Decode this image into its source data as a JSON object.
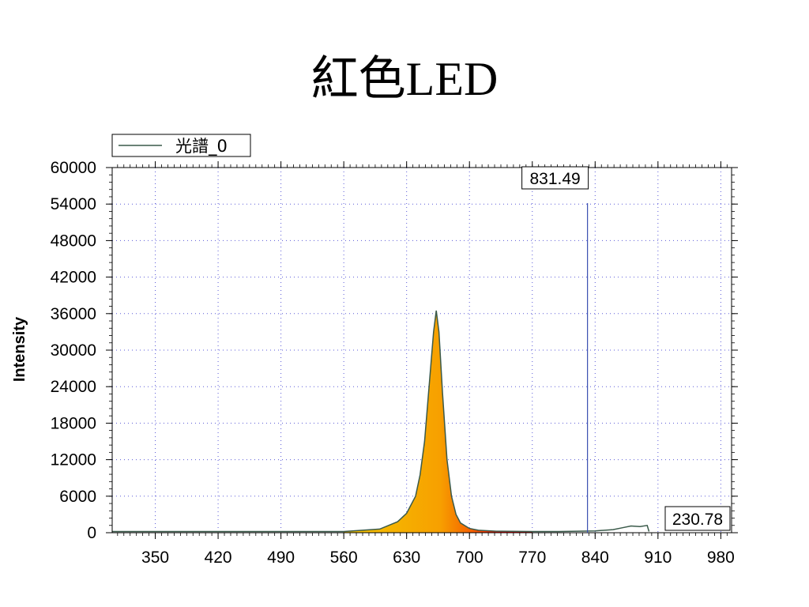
{
  "slide": {
    "title": "紅色LED"
  },
  "chart_data": {
    "type": "area",
    "title": "",
    "xlabel": "",
    "ylabel": "Intensity",
    "xlim": [
      302,
      992
    ],
    "ylim": [
      0,
      60000
    ],
    "x_ticks": [
      "350",
      "420",
      "490",
      "560",
      "630",
      "700",
      "770",
      "840",
      "910",
      "980"
    ],
    "y_ticks": [
      "0",
      "6000",
      "12000",
      "18000",
      "24000",
      "30000",
      "36000",
      "42000",
      "48000",
      "54000",
      "60000"
    ],
    "grid": true,
    "legend_position": "top-left",
    "series": [
      {
        "name": "光譜_0",
        "color": "#3a5a4a",
        "fill": "gradient-by-wavelength",
        "x": [
          302,
          560,
          600,
          620,
          630,
          640,
          645,
          650,
          655,
          660,
          663,
          666,
          670,
          675,
          680,
          685,
          690,
          700,
          710,
          730,
          770,
          800,
          840,
          860,
          870,
          880,
          890,
          898,
          900
        ],
        "y": [
          200,
          200,
          600,
          1800,
          3200,
          6000,
          9500,
          15000,
          24000,
          33000,
          36500,
          33000,
          23000,
          12000,
          6000,
          3000,
          1600,
          700,
          400,
          250,
          200,
          200,
          300,
          500,
          800,
          1100,
          1000,
          1200,
          200
        ]
      }
    ],
    "annotations": [
      {
        "type": "cursor",
        "x": 831.49,
        "label": "831.49"
      },
      {
        "type": "value-readout",
        "label": "230.78",
        "position": "bottom-right"
      }
    ]
  }
}
